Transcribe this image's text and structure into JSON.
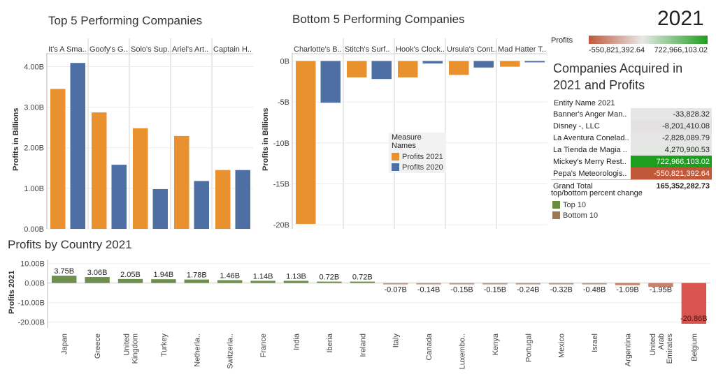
{
  "year": "2021",
  "top5": {
    "title": "Top 5 Performing Companies",
    "ylabel": "Profits in Billions",
    "ticks": [
      "0.00B",
      "1.00B",
      "2.00B",
      "3.00B",
      "4.00B"
    ],
    "chart_data": {
      "type": "bar",
      "categories": [
        "It's A Sma..",
        "Goofy's G..",
        "Solo's Sup..",
        "Ariel's Art..",
        "Captain H.."
      ],
      "series": [
        {
          "name": "Profits 2021",
          "values": [
            3.45,
            2.87,
            2.48,
            2.29,
            1.45
          ]
        },
        {
          "name": "Profits 2020",
          "values": [
            4.09,
            1.58,
            0.98,
            1.18,
            1.45
          ]
        }
      ],
      "ylabel": "Profits in Billions",
      "ylim": [
        0,
        4.3
      ]
    }
  },
  "bottom5": {
    "title": "Bottom 5 Performing Companies",
    "ylabel": "Profits in Billions",
    "ticks": [
      "0B",
      "-5B",
      "-10B",
      "-15B",
      "-20B"
    ],
    "chart_data": {
      "type": "bar",
      "categories": [
        "Charlotte's B..",
        "Stitch's Surf..",
        "Hook's Clock..",
        "Ursula's Cont..",
        "Mad Hatter T.."
      ],
      "series": [
        {
          "name": "Profits 2021",
          "values": [
            -19.9,
            -2.0,
            -2.0,
            -1.7,
            -0.7
          ]
        },
        {
          "name": "Profits 2020",
          "values": [
            -5.1,
            -2.2,
            -0.3,
            -0.8,
            -0.1
          ]
        }
      ],
      "ylabel": "Profits in Billions",
      "ylim": [
        -20.5,
        0.8
      ]
    },
    "legend": {
      "title": "Measure Names",
      "items": [
        {
          "label": "Profits 2021",
          "color": "#e8912e"
        },
        {
          "label": "Profits 2020",
          "color": "#4e6fa3"
        }
      ]
    }
  },
  "country": {
    "title": "Profits by Country 2021",
    "ylabel": "Profits 2021",
    "ticks": [
      "10.00B",
      "0.00B",
      "-10.00B",
      "-20.00B"
    ],
    "chart_data": {
      "type": "bar",
      "categories": [
        "Japan",
        "Greece",
        "United Kingdom",
        "Turkey",
        "Netherla..",
        "Switzerla..",
        "France",
        "India",
        "Iberia",
        "Ireland",
        "Italy",
        "Canada",
        "Luxembo..",
        "Kenya",
        "Portugal",
        "Mexico",
        "Israel",
        "Argentina",
        "United Arab Emirates",
        "Belgium"
      ],
      "values": [
        3.75,
        3.06,
        2.05,
        1.94,
        1.78,
        1.46,
        1.14,
        1.13,
        0.72,
        0.72,
        -0.07,
        -0.14,
        -0.15,
        -0.15,
        -0.24,
        -0.32,
        -0.48,
        -1.09,
        -1.95,
        -20.86
      ],
      "labels": [
        "3.75B",
        "3.06B",
        "2.05B",
        "1.94B",
        "1.78B",
        "1.46B",
        "1.14B",
        "1.13B",
        "0.72B",
        "0.72B",
        "-0.07B",
        "-0.14B",
        "-0.15B",
        "-0.15B",
        "-0.24B",
        "-0.32B",
        "-0.48B",
        "-1.09B",
        "-1.95B",
        "-20.86B"
      ],
      "ylabel": "Profits 2021",
      "ylim": [
        -23,
        12
      ]
    },
    "colors": {
      "positive": "#6f8f4e",
      "negative_small": "#b89a86",
      "negative_mid": "#c9826e",
      "negative_large": "#d9534f"
    }
  },
  "profits_scale": {
    "label": "Profits",
    "min": "-550,821,392.64",
    "max": "722,966,103.02"
  },
  "acquired": {
    "title_line1": "Companies Acquired in",
    "title_line2": "2021 and Profits",
    "header": "Entity Name 2021",
    "rows": [
      {
        "name": "Banner's Anger Man..",
        "value": "-33,828.32",
        "bg": "#e6e6e6",
        "fg": "#222222"
      },
      {
        "name": "Disney -, LLC",
        "value": "-8,201,410.08",
        "bg": "#e3e1e1",
        "fg": "#222222"
      },
      {
        "name": "La Aventura Conelad..",
        "value": "-2,828,089.79",
        "bg": "#e6e6e6",
        "fg": "#222222"
      },
      {
        "name": "La Tienda de Magia ..",
        "value": "4,270,900.53",
        "bg": "#e4e7e4",
        "fg": "#222222"
      },
      {
        "name": "Mickey's Merry Rest..",
        "value": "722,966,103.02",
        "bg": "#1e9e1e",
        "fg": "#ffffff"
      },
      {
        "name": "Pepa's Meteorologis..",
        "value": "-550,821,392.64",
        "bg": "#c0583a",
        "fg": "#ffffff"
      }
    ],
    "total_label": "Grand Total",
    "total_value": "165,352,282.73"
  },
  "change_legend": {
    "title": "top/bottom percent change",
    "items": [
      {
        "label": "Top 10",
        "color": "#6b8a3e"
      },
      {
        "label": "Bottom 10",
        "color": "#9a7a55"
      }
    ]
  }
}
